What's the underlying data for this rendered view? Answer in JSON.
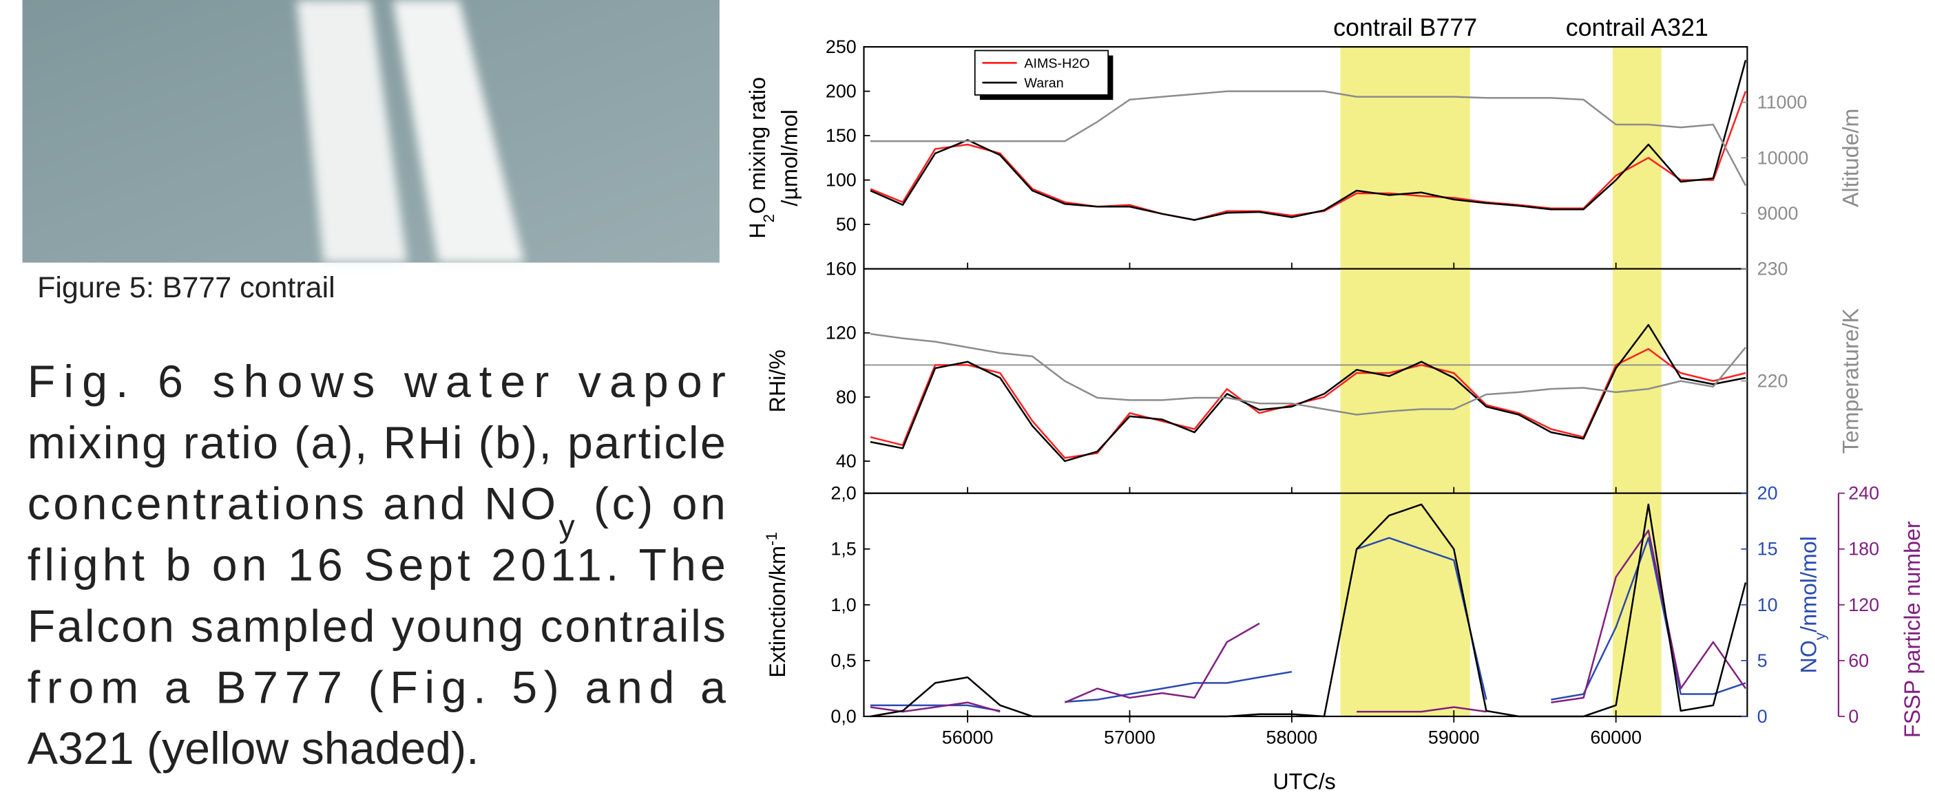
{
  "caption": "Figure 5: B777 contrail",
  "paragraph": [
    "Fig. 6 shows water vapor",
    "mixing ratio (a), RHi (b), particle",
    [
      "concentrations and NO",
      "y",
      " (c) on"
    ],
    "flight b on 16 Sept 2011. The",
    "Falcon sampled young contrails",
    "from a B777 (Fig. 5) and a",
    "A321 (yellow shaded)."
  ],
  "chart_data": [
    {
      "type": "line",
      "ylabel": [
        "H",
        "2",
        "O mixing ratio"
      ],
      "ylabel2": "/µmol/mol",
      "y2label": "Altitude/m",
      "shaded": [
        {
          "label": "contrail B777",
          "range": [
            58300,
            59100
          ],
          "color": "#f3f08a"
        },
        {
          "label": "contrail A321",
          "range": [
            59980,
            60280
          ],
          "color": "#f3f08a"
        }
      ],
      "xlim": [
        55360,
        60810
      ],
      "ylim": [
        0,
        250
      ],
      "yticks": [
        50,
        100,
        150,
        200,
        250
      ],
      "y2lim": [
        8000,
        12000
      ],
      "y2ticks": [
        9000,
        10000,
        11000
      ],
      "legend": "upper left",
      "x": [
        55400,
        55600,
        55800,
        56000,
        56200,
        56400,
        56600,
        56800,
        57000,
        57200,
        57400,
        57600,
        57800,
        58000,
        58200,
        58400,
        58600,
        58800,
        59000,
        59200,
        59400,
        59600,
        59800,
        60000,
        60200,
        60400,
        60600,
        60800
      ],
      "series": [
        {
          "name": "AIMS-H2O",
          "color": "#ff2020",
          "values": [
            90,
            75,
            135,
            140,
            130,
            90,
            75,
            70,
            72,
            62,
            55,
            65,
            65,
            60,
            65,
            85,
            85,
            82,
            80,
            75,
            72,
            68,
            68,
            105,
            125,
            100,
            100,
            200
          ]
        },
        {
          "name": "Waran",
          "color": "#000000",
          "values": [
            88,
            72,
            130,
            145,
            128,
            88,
            73,
            70,
            70,
            62,
            55,
            63,
            64,
            58,
            66,
            88,
            83,
            86,
            78,
            74,
            71,
            67,
            67,
            100,
            140,
            98,
            102,
            235
          ]
        },
        {
          "color": "#8c8c8c",
          "axis": "y2",
          "values": [
            10300,
            10300,
            10300,
            10300,
            10300,
            10300,
            10300,
            10650,
            11050,
            11100,
            11150,
            11200,
            11200,
            11200,
            11200,
            11100,
            11100,
            11100,
            11100,
            11080,
            11080,
            11080,
            11050,
            10600,
            10600,
            10550,
            10600,
            9500
          ]
        }
      ]
    },
    {
      "type": "line",
      "ylabel": "RHi/%",
      "y2label": "Temperature/K",
      "xlim": [
        55360,
        60810
      ],
      "ylim": [
        20,
        160
      ],
      "yticks": [
        40,
        80,
        120,
        160
      ],
      "y2lim": [
        210,
        230
      ],
      "y2ticks": [
        220,
        230
      ],
      "hline": 100,
      "x": [
        55400,
        55600,
        55800,
        56000,
        56200,
        56400,
        56600,
        56800,
        57000,
        57200,
        57400,
        57600,
        57800,
        58000,
        58200,
        58400,
        58600,
        58800,
        59000,
        59200,
        59400,
        59600,
        59800,
        60000,
        60200,
        60400,
        60600,
        60800
      ],
      "series": [
        {
          "color": "#ff2020",
          "values": [
            55,
            50,
            100,
            100,
            95,
            65,
            42,
            45,
            70,
            65,
            60,
            85,
            70,
            75,
            80,
            95,
            95,
            100,
            95,
            75,
            70,
            60,
            55,
            100,
            110,
            95,
            90,
            95
          ]
        },
        {
          "color": "#000000",
          "values": [
            52,
            48,
            98,
            102,
            92,
            62,
            40,
            46,
            68,
            66,
            58,
            82,
            72,
            74,
            82,
            97,
            93,
            102,
            92,
            74,
            69,
            58,
            54,
            98,
            125,
            92,
            88,
            92
          ]
        },
        {
          "color": "#8c8c8c",
          "axis": "y2",
          "values": [
            224.2,
            223.8,
            223.5,
            223,
            222.5,
            222.2,
            220,
            218.5,
            218.3,
            218.3,
            218.5,
            218.5,
            218,
            218,
            217.5,
            217,
            217.3,
            217.5,
            217.5,
            218.8,
            219,
            219.3,
            219.4,
            219,
            219.3,
            220,
            219.5,
            223
          ]
        }
      ]
    },
    {
      "type": "line",
      "ylabel": [
        "Extinction/km",
        "-1"
      ],
      "y2label": [
        "NO",
        "y",
        "/nmol/mol"
      ],
      "y3label": "FSSP particle number",
      "xlabel": "UTC/s",
      "xlim": [
        55360,
        60810
      ],
      "xticks": [
        56000,
        57000,
        58000,
        59000,
        60000
      ],
      "ylim": [
        0,
        2
      ],
      "yticks": [
        {
          "value": 0,
          "label": "0,0"
        },
        {
          "value": 0.5,
          "label": "0,5"
        },
        {
          "value": 1,
          "label": "1,0"
        },
        {
          "value": 1.5,
          "label": "1,5"
        },
        {
          "value": 2,
          "label": "2,0"
        }
      ],
      "y2lim": [
        0,
        20
      ],
      "y2ticks": [
        0,
        5,
        10,
        15,
        20
      ],
      "y3lim": [
        0,
        240
      ],
      "y3ticks": [
        0,
        60,
        120,
        180,
        240
      ],
      "x": [
        55400,
        55600,
        55800,
        56000,
        56200,
        56400,
        56600,
        56800,
        57000,
        57200,
        57400,
        57600,
        57800,
        58000,
        58200,
        58400,
        58600,
        58800,
        59000,
        59200,
        59400,
        59600,
        59800,
        60000,
        60200,
        60400,
        60600,
        60800
      ],
      "series": [
        {
          "color": "#2a4bb0",
          "axis": "y2",
          "values": [
            1,
            1,
            1,
            1,
            0.5,
            null,
            1.3,
            1.5,
            2,
            2.5,
            3,
            3,
            3.5,
            4,
            null,
            15,
            16,
            15,
            14,
            1.5,
            null,
            1.5,
            2,
            8,
            16,
            2,
            2,
            3
          ]
        },
        {
          "color": "#80207f",
          "axis": "y3",
          "values": [
            10,
            5,
            10,
            15,
            5,
            null,
            15,
            30,
            20,
            25,
            20,
            80,
            100,
            null,
            null,
            5,
            5,
            5,
            10,
            5,
            null,
            15,
            20,
            150,
            200,
            30,
            80,
            30
          ]
        },
        {
          "color": "#000000",
          "values": [
            0,
            0.05,
            0.3,
            0.35,
            0.1,
            0,
            0,
            0,
            0,
            0,
            0,
            0,
            0.02,
            0.02,
            0,
            1.5,
            1.8,
            1.9,
            1.5,
            0.05,
            0,
            0,
            0,
            0.1,
            1.9,
            0.05,
            0.1,
            1.2
          ]
        }
      ]
    }
  ]
}
